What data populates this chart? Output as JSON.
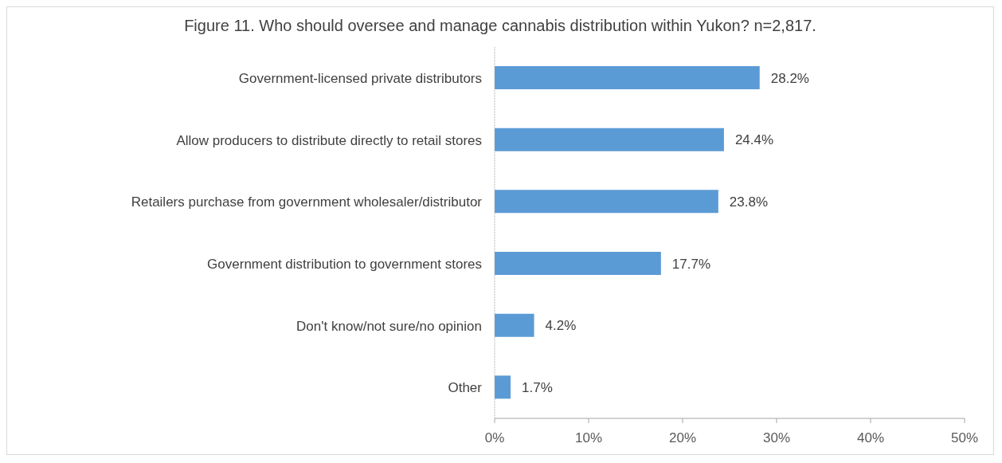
{
  "chart_data": {
    "type": "bar",
    "orientation": "horizontal",
    "title": "Figure 11. Who should oversee and manage cannabis distribution within Yukon? n=2,817.",
    "categories": [
      "Government-licensed private distributors",
      "Allow producers to distribute directly to retail stores",
      "Retailers purchase from government wholesaler/distributor",
      "Government distribution to government stores",
      "Don't know/not sure/no opinion",
      "Other"
    ],
    "values": [
      28.2,
      24.4,
      23.8,
      17.7,
      4.2,
      1.7
    ],
    "value_labels": [
      "28.2%",
      "24.4%",
      "23.8%",
      "17.7%",
      "4.2%",
      "1.7%"
    ],
    "color": "#5b9bd5",
    "xlim": [
      0,
      50
    ],
    "xticks": [
      {
        "value": 0,
        "label": "0%"
      },
      {
        "value": 10,
        "label": "10%"
      },
      {
        "value": 20,
        "label": "20%"
      },
      {
        "value": 30,
        "label": "30%"
      },
      {
        "value": 40,
        "label": "40%"
      },
      {
        "value": 50,
        "label": "50%"
      }
    ]
  }
}
